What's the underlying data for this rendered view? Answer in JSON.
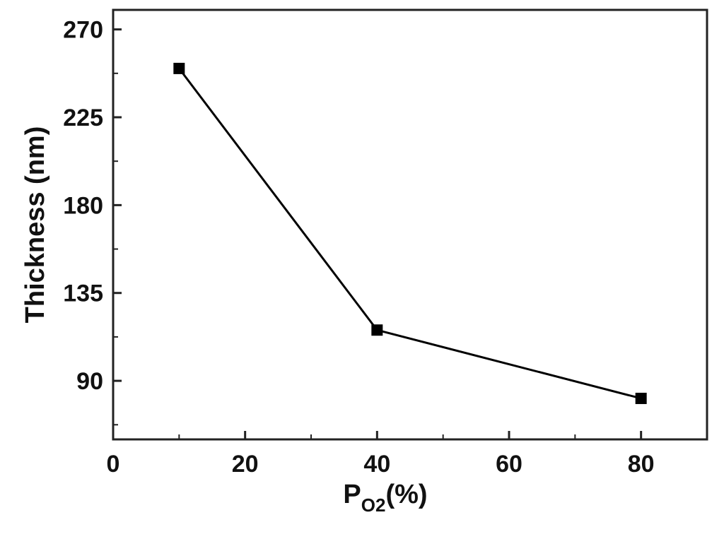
{
  "chart_data": {
    "type": "line",
    "title": "",
    "xlabel": {
      "main": "P",
      "sub": "O2",
      "suffix": "(%)"
    },
    "ylabel": "Thickness (nm)",
    "xlim": [
      0,
      90
    ],
    "ylim": [
      60,
      280
    ],
    "xticks": [
      0,
      20,
      40,
      60,
      80
    ],
    "xtick_labels": [
      "0",
      "20",
      "40",
      "60",
      "80"
    ],
    "yticks": [
      90,
      135,
      180,
      225,
      270
    ],
    "ytick_labels": [
      "90",
      "135",
      "180",
      "225",
      "270"
    ],
    "grid": false,
    "legend": "none",
    "series": [
      {
        "x": [
          10,
          40,
          80
        ],
        "y": [
          250,
          116,
          81
        ],
        "marker": "square",
        "color": "#000000"
      }
    ]
  }
}
